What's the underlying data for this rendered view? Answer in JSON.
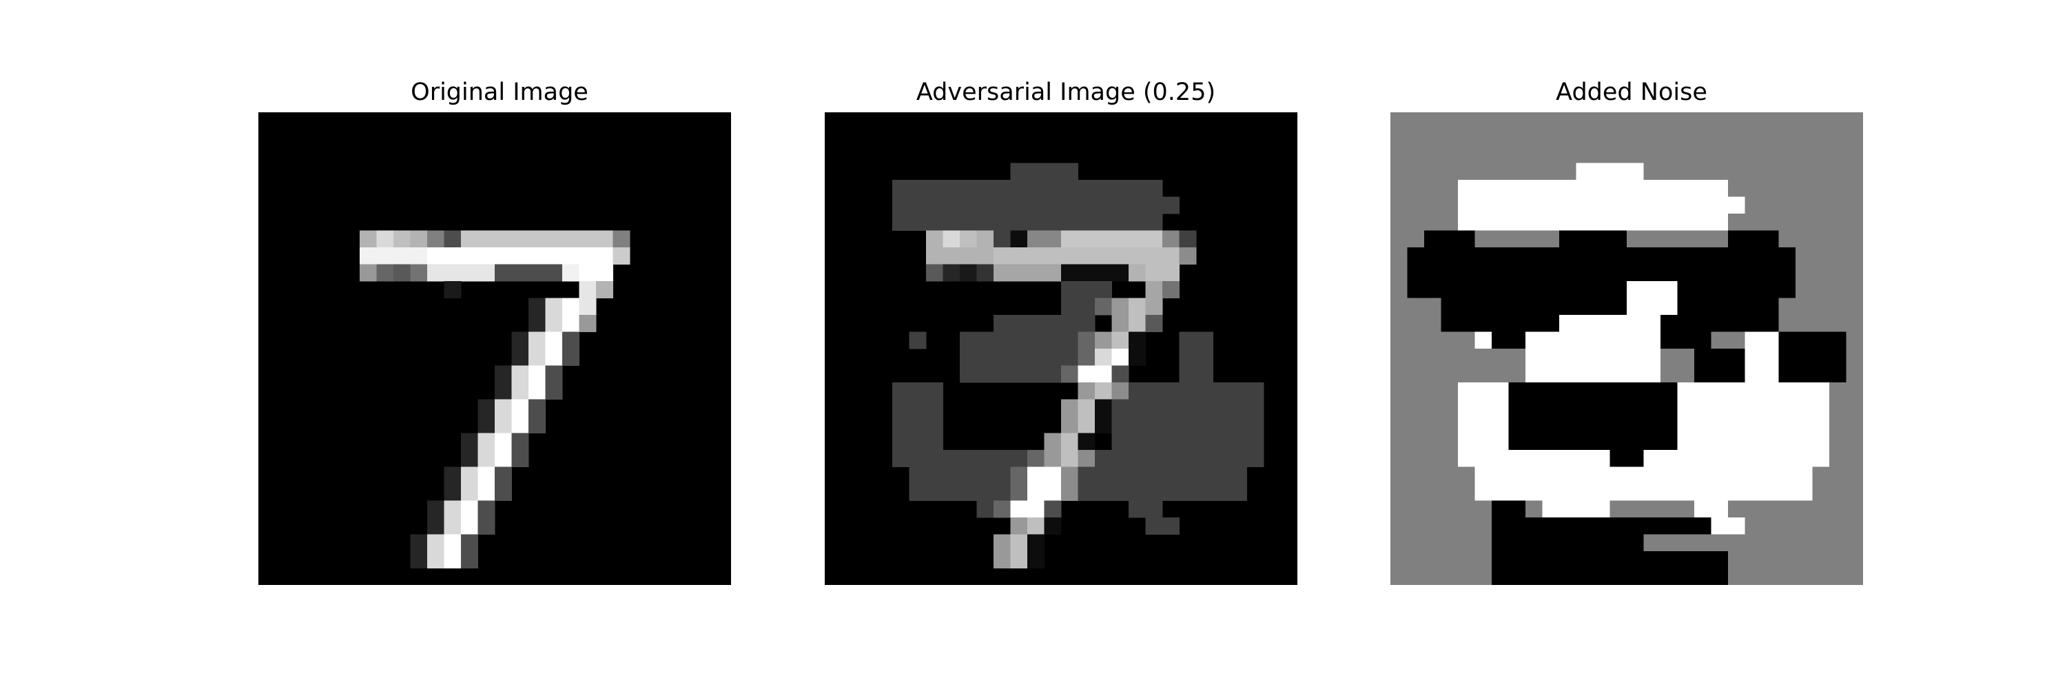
{
  "panels": [
    {
      "title": "Original Image",
      "image": "original-digit-7"
    },
    {
      "title": "Adversarial Image (0.25)",
      "image": "adversarial-digit-7"
    },
    {
      "title": "Added Noise",
      "image": "noise-pattern"
    }
  ],
  "palette": {
    "background": "#000000",
    "adversarial_patch": "#404040",
    "noise_gray": "#808080",
    "noise_white": "#ffffff",
    "noise_black": "#000000"
  }
}
